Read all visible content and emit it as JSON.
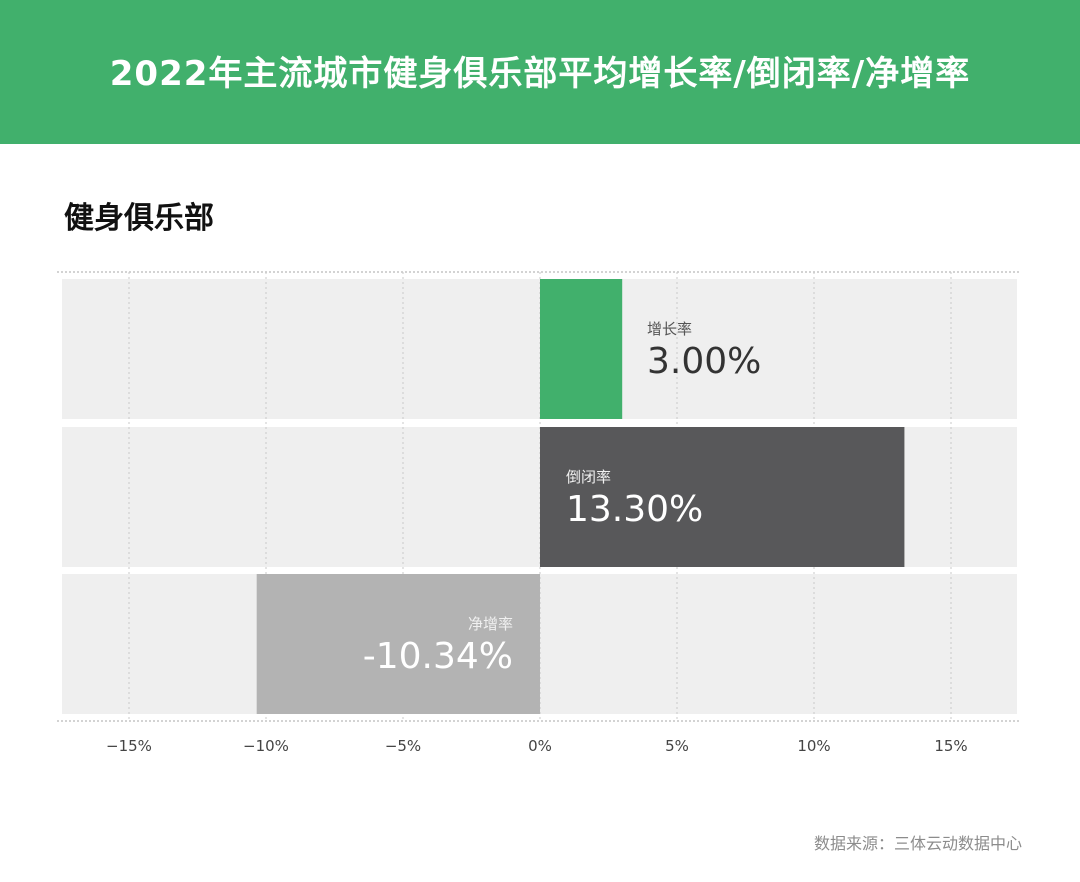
{
  "header": {
    "title": "2022年主流城市健身俱乐部平均增长率/倒闭率/净增率"
  },
  "subtitle": "健身俱乐部",
  "source": "数据来源：三体云动数据中心",
  "colors": {
    "header_bg": "#41b06c",
    "growth": "#41b06c",
    "closure": "#58585a",
    "net": "#b3b3b3",
    "row_bg": "#efefef"
  },
  "chart_data": {
    "type": "bar",
    "orientation": "horizontal",
    "categories": [
      "增长率",
      "倒闭率",
      "净增率"
    ],
    "values": [
      3.0,
      13.3,
      -10.34
    ],
    "value_labels": [
      "3.00%",
      "13.30%",
      "-10.34%"
    ],
    "xlim": [
      -17.5,
      17.5
    ],
    "xticks": [
      -15,
      -10,
      -5,
      0,
      5,
      10,
      15
    ],
    "xtick_labels": [
      "−15%",
      "−10%",
      "−5%",
      "0%",
      "5%",
      "10%",
      "15%"
    ],
    "grid": true
  }
}
